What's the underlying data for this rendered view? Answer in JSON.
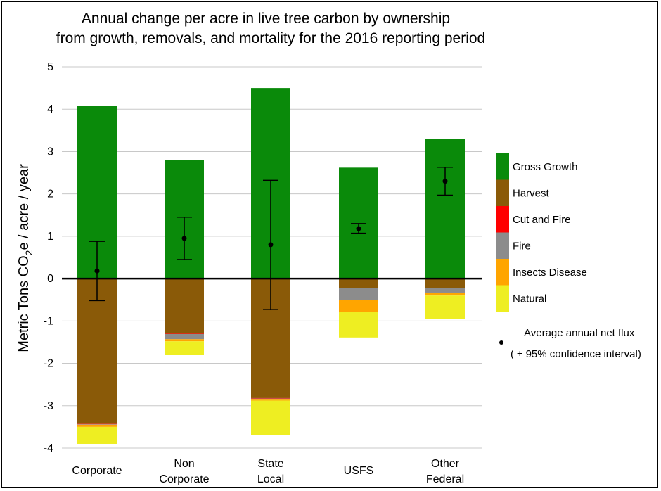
{
  "chart_data": {
    "type": "bar",
    "stacked": true,
    "title_lines": [
      "Annual change per acre in live tree carbon by ownership",
      "from growth, removals, and mortality for the 2016 reporting period"
    ],
    "ylabel_parts": {
      "prefix": "Metric Tons CO",
      "sub": "2",
      "suffix": "e / acre / year"
    },
    "ylim": [
      -4,
      5
    ],
    "yticks": [
      "5",
      "4",
      "3",
      "2",
      "1",
      "0",
      "-1",
      "-2",
      "-3",
      "-4"
    ],
    "ytick_values": [
      5,
      4,
      3,
      2,
      1,
      0,
      -1,
      -2,
      -3,
      -4
    ],
    "grid": true,
    "legend_position": "right",
    "categories": [
      {
        "lines": [
          "Corporate"
        ]
      },
      {
        "lines": [
          "Non",
          "Corporate"
        ]
      },
      {
        "lines": [
          "State",
          "Local"
        ]
      },
      {
        "lines": [
          "USFS"
        ]
      },
      {
        "lines": [
          "Other",
          "Federal"
        ]
      }
    ],
    "series": [
      {
        "name": "Gross Growth",
        "color": "#0a8a0a",
        "values": [
          4.08,
          2.8,
          4.5,
          2.62,
          3.3
        ]
      },
      {
        "name": "Harvest",
        "color": "#8a5a08",
        "values": [
          -3.43,
          -1.3,
          -2.82,
          -0.23,
          -0.22
        ]
      },
      {
        "name": "Cut and Fire",
        "color": "#ff0000",
        "values": [
          -0.01,
          -0.01,
          -0.01,
          0.0,
          -0.01
        ]
      },
      {
        "name": "Fire",
        "color": "#8c8c8c",
        "values": [
          -0.01,
          -0.12,
          -0.01,
          -0.28,
          -0.1
        ]
      },
      {
        "name": "Insects Disease",
        "color": "#ffa500",
        "values": [
          -0.05,
          -0.05,
          -0.04,
          -0.28,
          -0.07
        ]
      },
      {
        "name": "Natural",
        "color": "#eeee22",
        "values": [
          -0.4,
          -0.32,
          -0.82,
          -0.6,
          -0.56
        ]
      }
    ],
    "net_flux": {
      "legend_lines": [
        "Average annual net flux",
        "( ± 95% confidence interval)"
      ],
      "mean": [
        0.18,
        0.95,
        0.8,
        1.18,
        2.3
      ],
      "ci_low": [
        -0.52,
        0.45,
        -0.73,
        1.07,
        1.97
      ],
      "ci_high": [
        0.88,
        1.45,
        2.32,
        1.3,
        2.63
      ]
    }
  }
}
